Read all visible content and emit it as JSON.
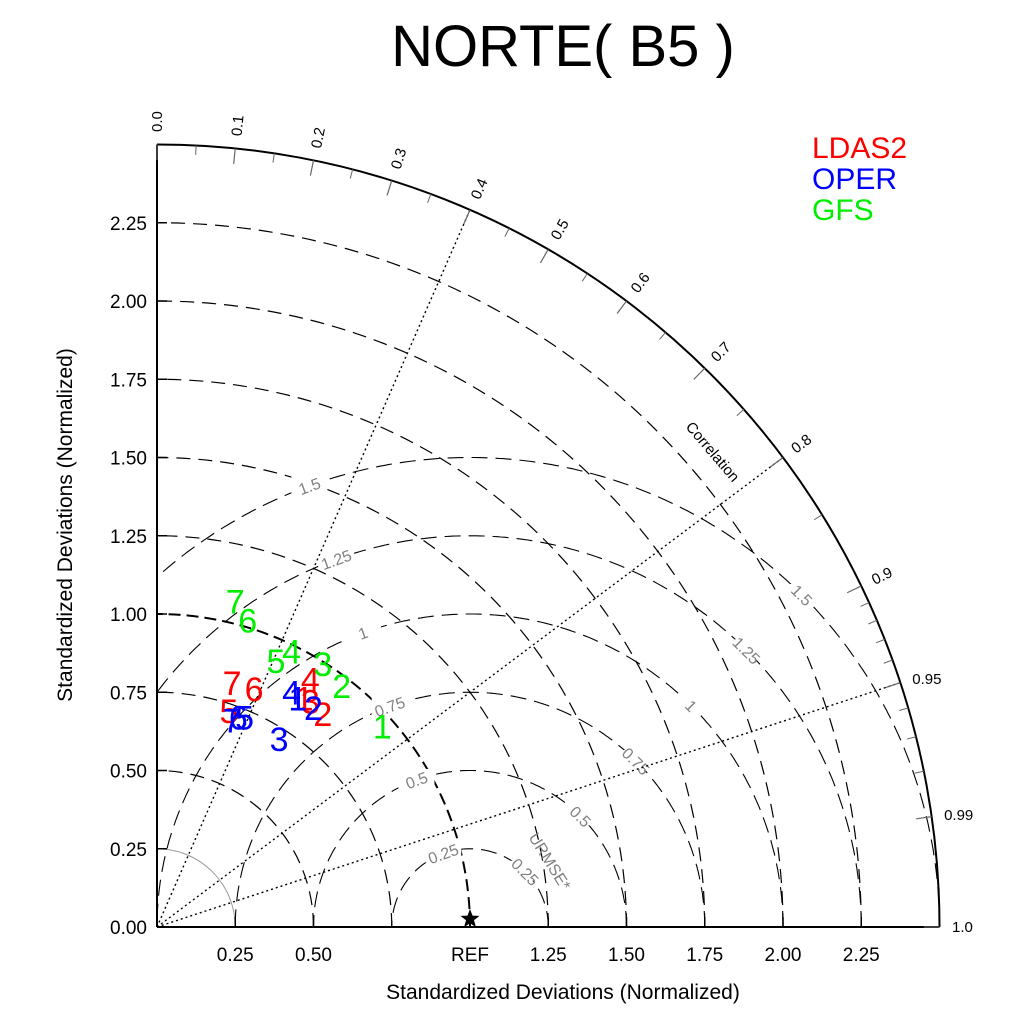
{
  "title": "NORTE( B5 )",
  "chart_data": {
    "type": "scatter",
    "subtype": "taylor-diagram",
    "title": "NORTE( B5 )",
    "xlabel": "Standardized Deviations (Normalized)",
    "ylabel": "Standardized Deviations (Normalized)",
    "std_range": [
      0,
      2.5
    ],
    "x_ticks": [
      "0.25",
      "0.50",
      "REF",
      "1.25",
      "1.50",
      "1.75",
      "2.00",
      "2.25"
    ],
    "x_tick_values": [
      0.25,
      0.5,
      1.0,
      1.25,
      1.5,
      1.75,
      2.0,
      2.25
    ],
    "y_ticks": [
      "0.00",
      "0.25",
      "0.50",
      "0.75",
      "1.00",
      "1.25",
      "1.50",
      "1.75",
      "2.00",
      "2.25"
    ],
    "y_tick_values": [
      0,
      0.25,
      0.5,
      0.75,
      1.0,
      1.25,
      1.5,
      1.75,
      2.0,
      2.25
    ],
    "correlation_label": "Correlation",
    "correlation_ticks": [
      "0.0",
      "0.1",
      "0.2",
      "0.3",
      "0.4",
      "0.5",
      "0.6",
      "0.7",
      "0.8",
      "0.9",
      "0.95",
      "0.99",
      "1.0"
    ],
    "correlation_values": [
      0.0,
      0.1,
      0.2,
      0.3,
      0.4,
      0.5,
      0.6,
      0.7,
      0.8,
      0.9,
      0.95,
      0.99,
      1.0
    ],
    "correlation_rays": [
      0.4,
      0.8,
      0.95
    ],
    "std_arcs": [
      0.5,
      0.75,
      1.25,
      1.5,
      1.75,
      2.0,
      2.25
    ],
    "rmse_label": "URMSE*",
    "rmse_arcs": [
      0.25,
      0.5,
      0.75,
      1.0,
      1.25,
      1.5
    ],
    "rmse_arc_labels": [
      "0.25",
      "0.5",
      "0.75",
      "1",
      "1.25",
      "1.5"
    ],
    "reference_label": "REF",
    "reference_std": 1.0,
    "legend": [
      "LDAS2",
      "OPER",
      "GFS"
    ],
    "colors": {
      "LDAS2": "#ff0000",
      "OPER": "#0000ff",
      "GFS": "#00ee00"
    },
    "series": [
      {
        "name": "LDAS2",
        "labels": [
          "1",
          "2",
          "3",
          "4",
          "5",
          "6",
          "7"
        ],
        "x": [
          0.47,
          0.53,
          0.49,
          0.49,
          0.23,
          0.31,
          0.24
        ],
        "y": [
          0.73,
          0.68,
          0.72,
          0.79,
          0.69,
          0.76,
          0.78
        ]
      },
      {
        "name": "OPER",
        "labels": [
          "1",
          "2",
          "3",
          "4",
          "5",
          "6",
          "7"
        ],
        "x": [
          0.45,
          0.5,
          0.39,
          0.43,
          0.28,
          0.26,
          0.24
        ],
        "y": [
          0.73,
          0.7,
          0.6,
          0.75,
          0.67,
          0.67,
          0.66
        ]
      },
      {
        "name": "GFS",
        "labels": [
          "1",
          "2",
          "3",
          "4",
          "5",
          "6",
          "7"
        ],
        "x": [
          0.72,
          0.59,
          0.53,
          0.43,
          0.38,
          0.29,
          0.25
        ],
        "y": [
          0.64,
          0.77,
          0.84,
          0.88,
          0.85,
          0.98,
          1.04
        ]
      }
    ]
  }
}
